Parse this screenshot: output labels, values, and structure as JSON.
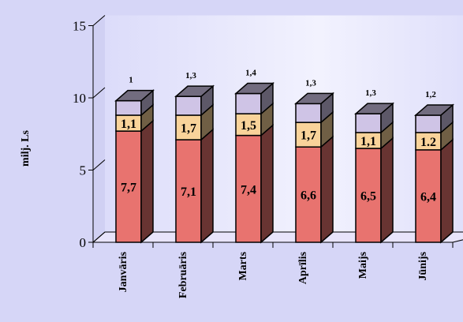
{
  "chart_data": {
    "type": "bar",
    "stacked": true,
    "three_d": true,
    "title": "",
    "xlabel": "",
    "ylabel": "milj. Ls",
    "ylim": [
      0,
      15
    ],
    "yticks": [
      "0",
      "5",
      "10",
      "15"
    ],
    "grid": false,
    "legend": "none",
    "categories": [
      "Janvāris",
      "Februāris",
      "Marts",
      "Aprīlis",
      "Maijs",
      "Jūnijs"
    ],
    "series": [
      {
        "values": [
          7.7,
          7.1,
          7.4,
          6.6,
          6.5,
          6.4
        ],
        "labels": [
          "7,7",
          "7,1",
          "7,4",
          "6,6",
          "6,5",
          "6,4"
        ],
        "color": "#e8736f"
      },
      {
        "values": [
          1.1,
          1.7,
          1.5,
          1.7,
          1.1,
          1.2
        ],
        "labels": [
          "1,1",
          "1,7",
          "1,5",
          "1,7",
          "1,1",
          "1.2"
        ],
        "color": "#f9d39a"
      },
      {
        "values": [
          1,
          1.3,
          1.4,
          1.3,
          1.3,
          1.2
        ],
        "labels": [
          "1",
          "1,3",
          "1,4",
          "1,3",
          "1,3",
          "1,2"
        ],
        "color": "#cfc4e6"
      }
    ],
    "colors": {
      "background": "#d6d6f7",
      "floor": "#e8e4fb"
    }
  }
}
